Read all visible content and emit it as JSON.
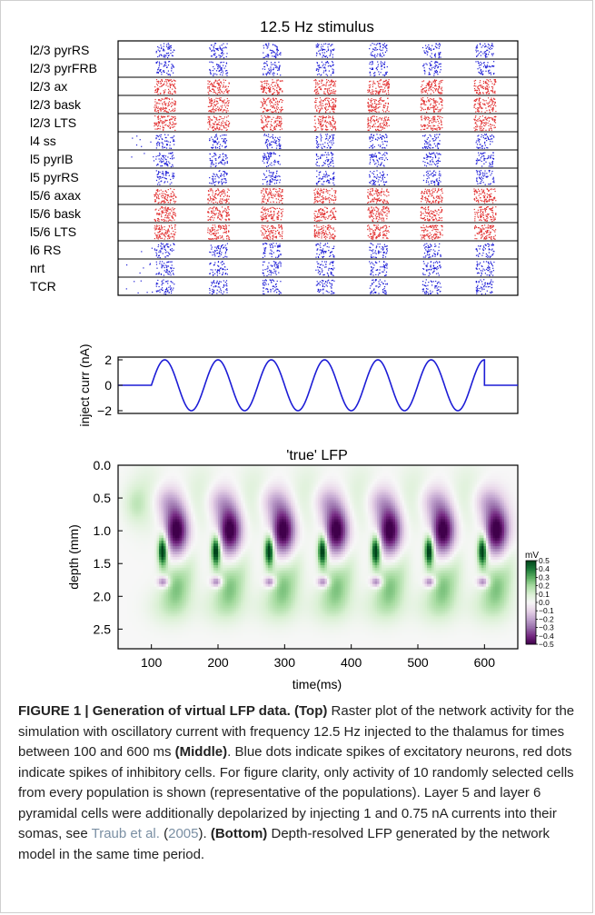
{
  "figure": {
    "caption": {
      "label": "FIGURE 1 | Generation of virtual LFP data.",
      "top_tag": "(Top)",
      "text_1": "Raster plot of the network activity for the simulation with oscillatory current with frequency 12.5 Hz injected to the thalamus for times between 100 and 600 ms",
      "middle_tag": "(Middle)",
      "text_2": ". Blue dots indicate spikes of excitatory neurons, red dots indicate spikes of inhibitory cells. For figure clarity, only activity of 10 randomly selected cells from every population is shown (representative of the populations). Layer 5 and layer 6 pyramidal cells were additionally depolarized by injecting 1 and 0.75 nA currents into their somas, see",
      "citation_author": "Traub et al.",
      "citation_year": "2005",
      "text_3": ").",
      "bottom_tag": "(Bottom)",
      "text_4": "Depth-resolved LFP generated by the network model in the same time period."
    }
  },
  "chart_data": [
    {
      "type": "scatter",
      "title": "12.5 Hz stimulus",
      "rows": [
        "l2/3 pyrRS",
        "l2/3 pyrFRB",
        "l2/3 ax",
        "l2/3 bask",
        "l2/3 LTS",
        "l4 ss",
        "l5 pyrIB",
        "l5 pyrRS",
        "l5/6 axax",
        "l5/6 bask",
        "l5/6 LTS",
        "l6 RS",
        "nrt",
        "TCR"
      ],
      "row_type": [
        "exc",
        "exc",
        "inh",
        "inh",
        "inh",
        "exc",
        "exc",
        "exc",
        "inh",
        "inh",
        "inh",
        "exc",
        "exc",
        "exc"
      ],
      "xlim": [
        50,
        650
      ],
      "burst_times": [
        120,
        200,
        280,
        360,
        440,
        520,
        600
      ],
      "colors": {
        "excitatory": "#1c1cd6",
        "inhibitory": "#e23030"
      }
    },
    {
      "type": "line",
      "title": "",
      "ylabel": "inject curr (nA)",
      "yticks": [
        "2",
        "0",
        "−2"
      ],
      "ylim": [
        -2,
        2
      ],
      "xlim": [
        50,
        650
      ],
      "stimulus_start": 100,
      "stimulus_end": 600,
      "frequency_hz": 12.5,
      "amplitude": 2,
      "color": "#1c1cd6"
    },
    {
      "type": "heatmap",
      "title": "'true' LFP",
      "xlabel": "time(ms)",
      "ylabel": "depth (mm)",
      "xticks": [
        "100",
        "200",
        "300",
        "400",
        "500",
        "600"
      ],
      "yticks": [
        "0.0",
        "0.5",
        "1.0",
        "1.5",
        "2.0",
        "2.5"
      ],
      "xlim": [
        50,
        650
      ],
      "ylim": [
        2.8,
        0.0
      ],
      "colorbar_unit": "mV",
      "colorbar_ticks": [
        "0.5",
        "0.4",
        "0.3",
        "0.2",
        "0.1",
        "0.0",
        "−0.1",
        "−0.2",
        "−0.3",
        "−0.4",
        "−0.5"
      ],
      "clim": [
        -0.5,
        0.5
      ],
      "cmap": "PRGn"
    }
  ]
}
